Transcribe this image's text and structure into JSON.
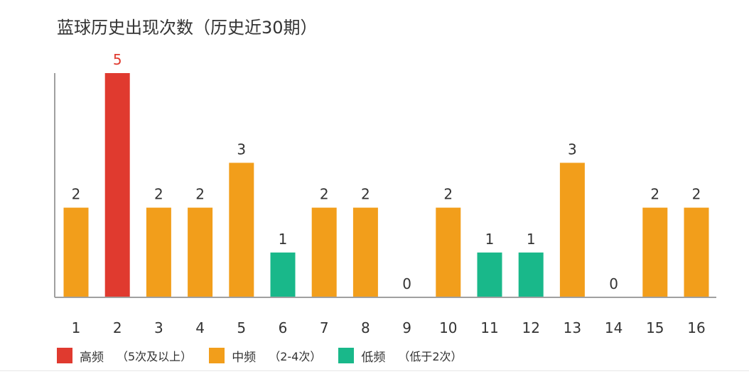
{
  "chart_data": {
    "type": "bar",
    "title": "蓝球历史出现次数（历史近30期）",
    "categories": [
      "1",
      "2",
      "3",
      "4",
      "5",
      "6",
      "7",
      "8",
      "9",
      "10",
      "11",
      "12",
      "13",
      "14",
      "15",
      "16"
    ],
    "values": [
      2,
      5,
      2,
      2,
      3,
      1,
      2,
      2,
      0,
      2,
      1,
      1,
      3,
      0,
      2,
      2
    ],
    "value_labels": [
      "2",
      "5",
      "2",
      "2",
      "3",
      "1",
      "2",
      "2",
      "0",
      "2",
      "1",
      "1",
      "3",
      "0",
      "2",
      "2"
    ],
    "ylim": [
      0,
      5
    ],
    "grid": false,
    "legend_position": "bottom-left",
    "legend": [
      {
        "name": "高频",
        "description": "（5次及以上）",
        "color": "#e03a2f"
      },
      {
        "name": "中频",
        "description": "（2-4次）",
        "color": "#f29e1b"
      },
      {
        "name": "低频",
        "description": "（低于2次）",
        "color": "#19b88a"
      }
    ],
    "colors": {
      "high": "#e03a2f",
      "medium": "#f29e1b",
      "low": "#19b88a",
      "axis": "#a0a0a0"
    }
  }
}
